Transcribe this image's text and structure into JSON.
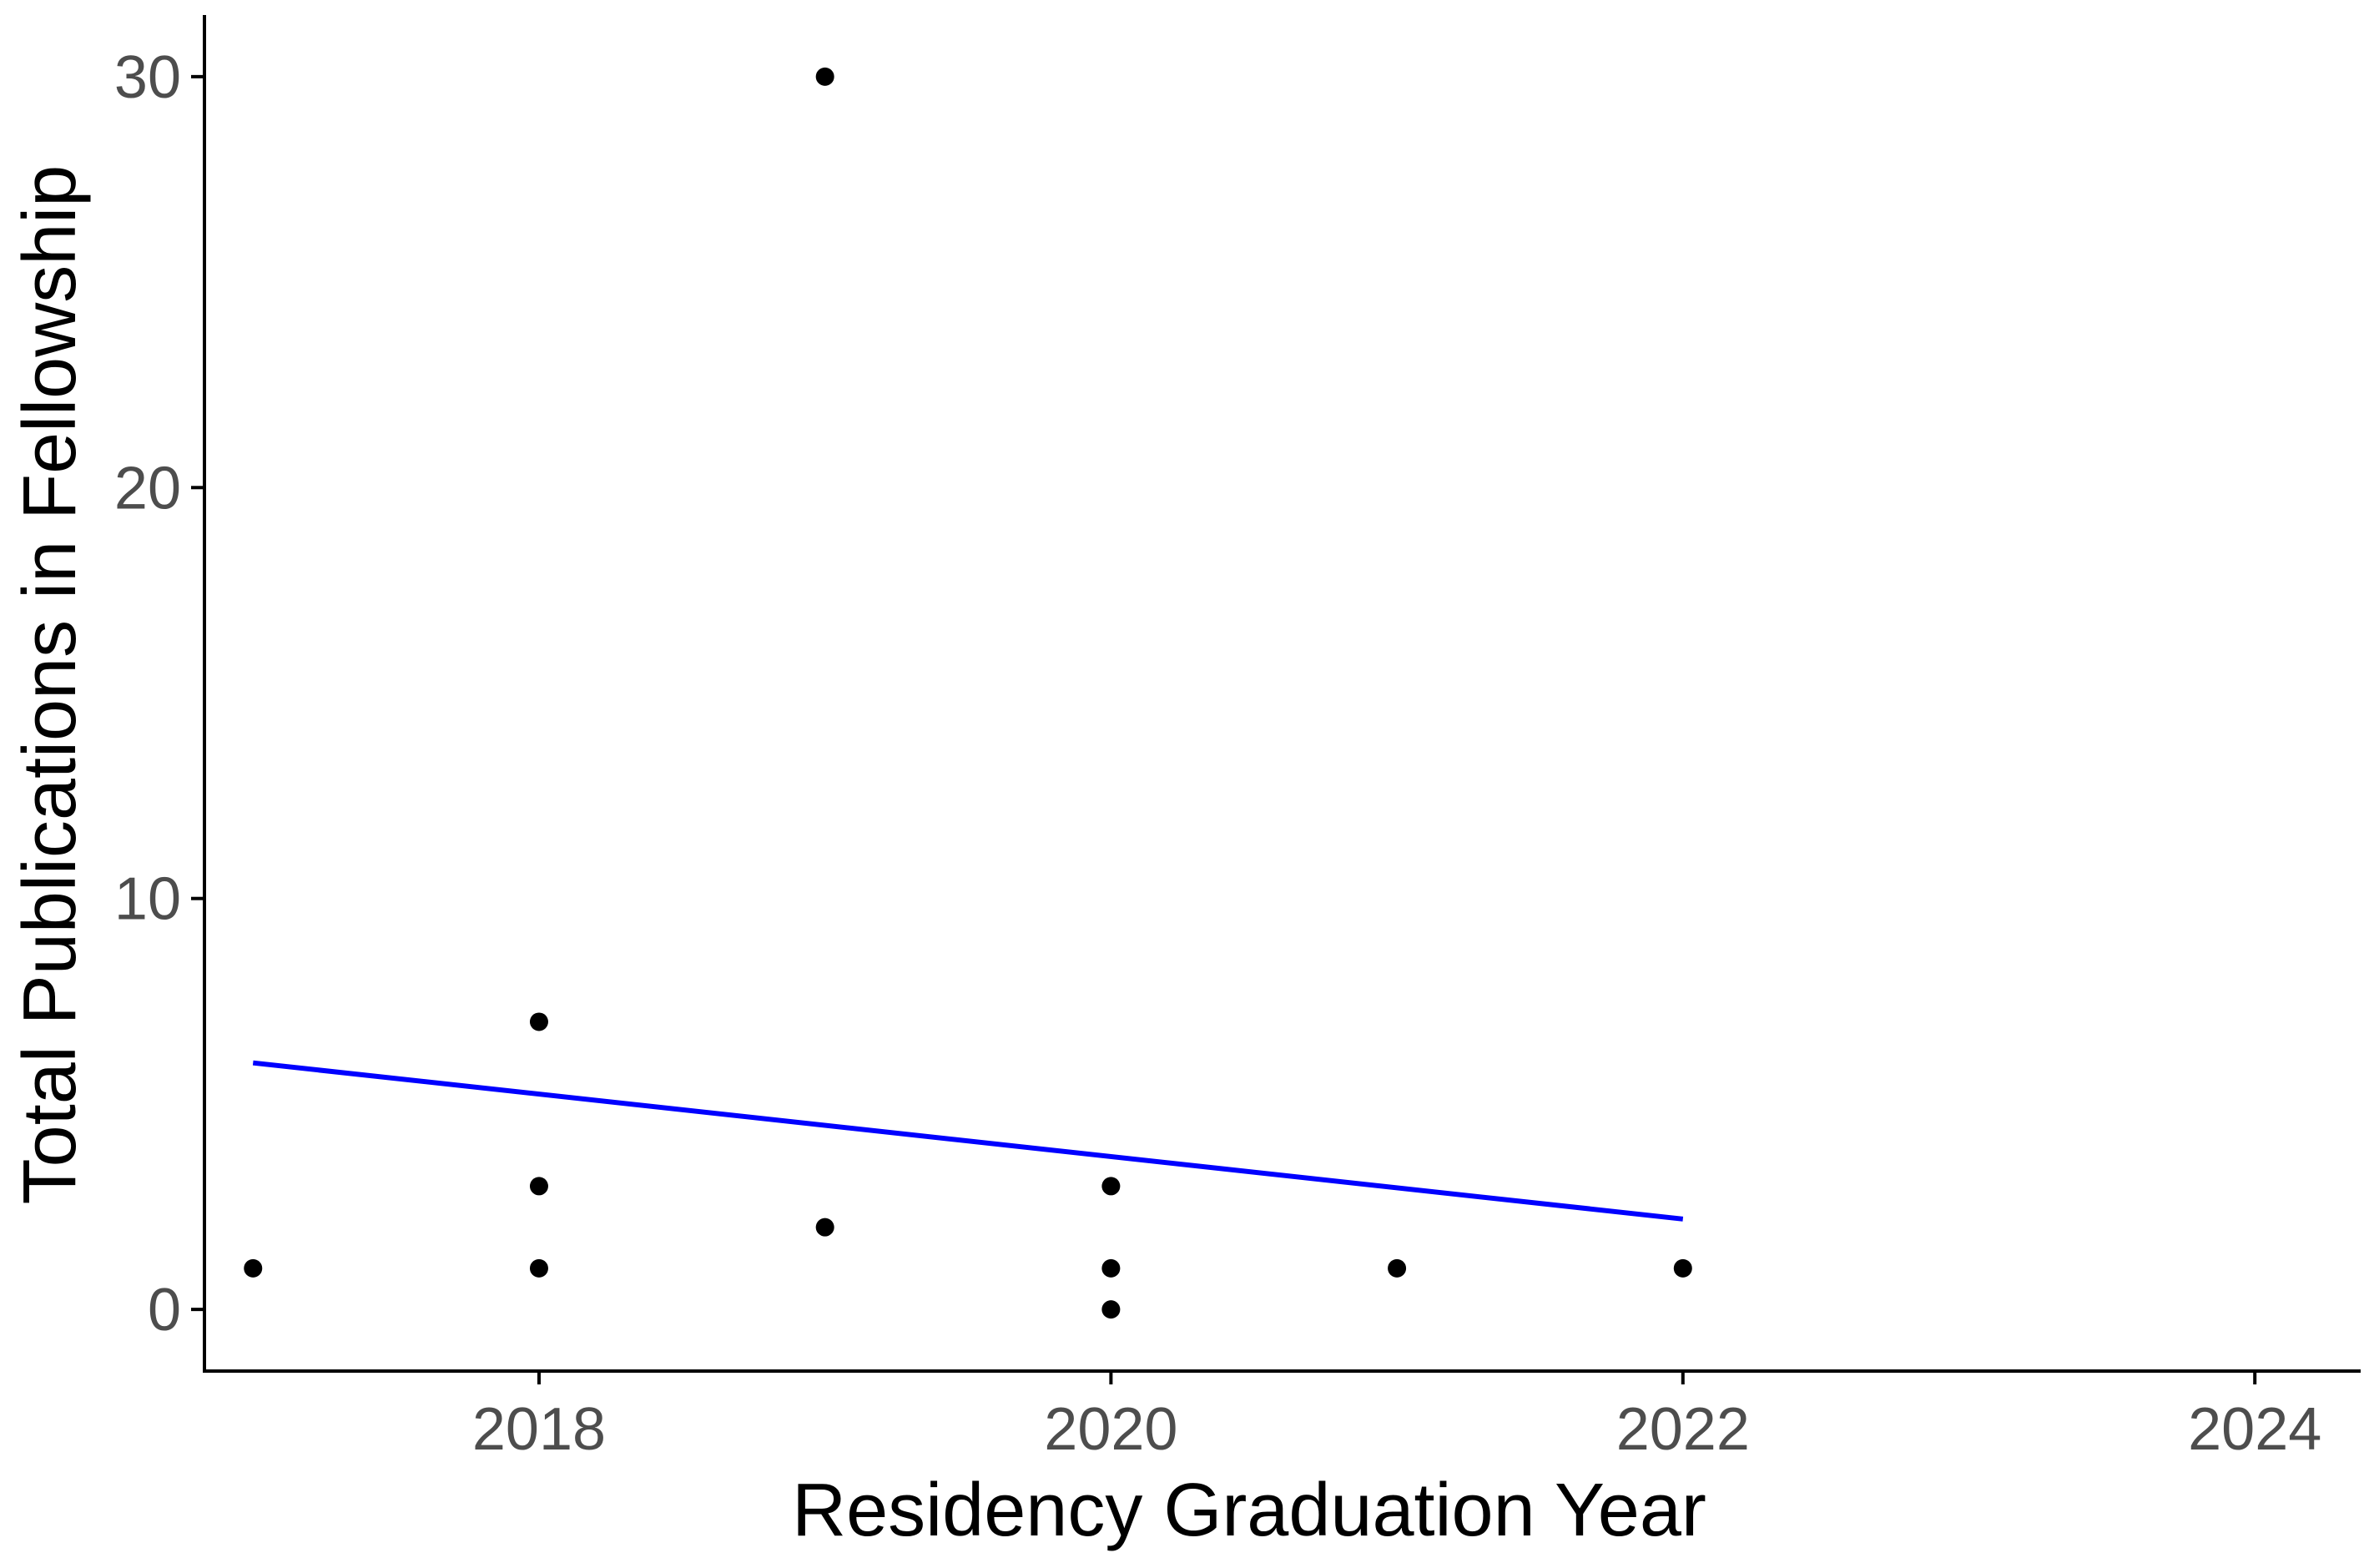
{
  "chart_data": {
    "type": "scatter",
    "title": "",
    "xlabel": "Residency Graduation Year",
    "ylabel": "Total Publications in Fellowship",
    "xlim": [
      2016.83,
      2024.37
    ],
    "ylim": [
      -1.5,
      31.5
    ],
    "xticks": [
      2018,
      2020,
      2022,
      2024
    ],
    "yticks": [
      0,
      10,
      20,
      30
    ],
    "grid": false,
    "legend": "none",
    "points": [
      {
        "x": 2017,
        "y": 1
      },
      {
        "x": 2018,
        "y": 7
      },
      {
        "x": 2018,
        "y": 3
      },
      {
        "x": 2018,
        "y": 1
      },
      {
        "x": 2019,
        "y": 30
      },
      {
        "x": 2019,
        "y": 2
      },
      {
        "x": 2020,
        "y": 3
      },
      {
        "x": 2020,
        "y": 1
      },
      {
        "x": 2020,
        "y": 0
      },
      {
        "x": 2021,
        "y": 1
      },
      {
        "x": 2022,
        "y": 1
      }
    ],
    "trend_line": {
      "x": [
        2017,
        2022
      ],
      "y": [
        6.0,
        2.2
      ]
    },
    "colors": {
      "points": "#000000",
      "trend_line": "#0000ff",
      "axis": "#000000",
      "tick_label": "#4d4d4d"
    }
  }
}
